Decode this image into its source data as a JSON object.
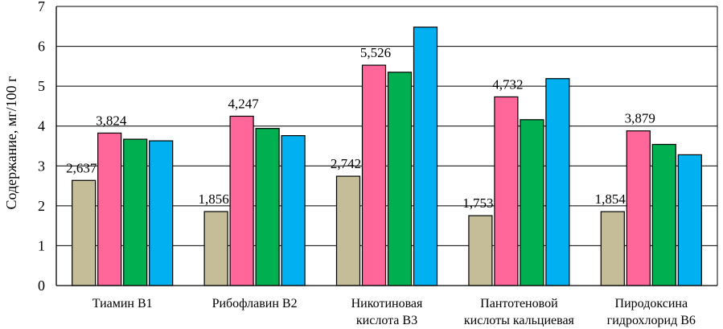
{
  "chart_data": {
    "type": "bar",
    "title": "",
    "xlabel": "",
    "ylabel": "Содержание, мг/100 г",
    "ylim": [
      0,
      7
    ],
    "yticks": [
      0,
      1,
      2,
      3,
      4,
      5,
      6,
      7
    ],
    "grid": true,
    "legend": "none",
    "categories": [
      [
        "Тиамин В1"
      ],
      [
        "Рибофлавин В2"
      ],
      [
        "Никотиновая",
        "кислота В3"
      ],
      [
        "Пантотеновой",
        "кислоты кальциевая"
      ],
      [
        "Пиродоксина",
        "гидрохлорид В6"
      ]
    ],
    "series": [
      {
        "color": "#c4bd97",
        "values": [
          2.637,
          1.856,
          2.742,
          1.753,
          1.854
        ]
      },
      {
        "color": "#ff6699",
        "values": [
          3.824,
          4.247,
          5.526,
          4.732,
          3.879
        ]
      },
      {
        "color": "#00b050",
        "values": [
          3.67,
          3.94,
          5.35,
          4.16,
          3.54
        ]
      },
      {
        "color": "#00b0f0",
        "values": [
          3.63,
          3.76,
          6.48,
          5.19,
          3.28
        ]
      }
    ],
    "data_labels": [
      {
        "series": 0,
        "category": 0,
        "text": "2,637"
      },
      {
        "series": 1,
        "category": 0,
        "text": "3,824"
      },
      {
        "series": 0,
        "category": 1,
        "text": "1,856"
      },
      {
        "series": 1,
        "category": 1,
        "text": "4,247"
      },
      {
        "series": 0,
        "category": 2,
        "text": "2,742"
      },
      {
        "series": 1,
        "category": 2,
        "text": "5,526"
      },
      {
        "series": 0,
        "category": 3,
        "text": "1,753"
      },
      {
        "series": 1,
        "category": 3,
        "text": "4,732"
      },
      {
        "series": 0,
        "category": 4,
        "text": "1,854"
      },
      {
        "series": 1,
        "category": 4,
        "text": "3,879"
      }
    ]
  }
}
